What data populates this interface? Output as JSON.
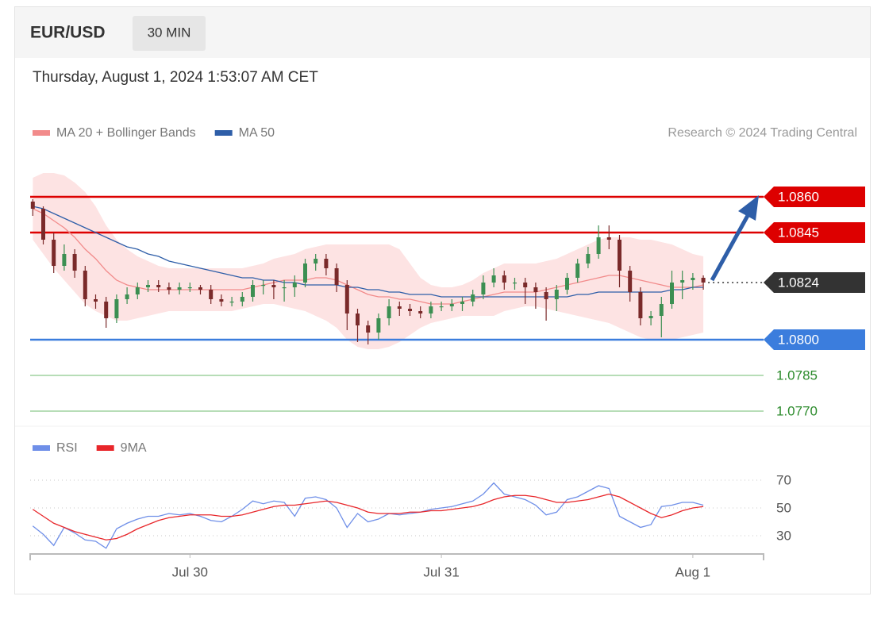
{
  "header": {
    "symbol": "EUR/USD",
    "interval": "30 MIN",
    "timestamp": "Thursday, August 1, 2024 1:53:07 AM CET",
    "credit": "Research © 2024 Trading Central"
  },
  "chart_data": [
    {
      "type": "candlestick",
      "x": [
        0.5,
        2.5,
        4.5,
        6.5,
        8.5,
        10.5,
        12.5,
        14.5,
        16.5,
        18.5,
        20.5,
        22.5,
        24.5,
        26.5,
        28.5,
        30.5,
        32.5,
        34.5,
        36.5,
        38.5,
        40.5,
        42.5,
        44.5,
        46.5,
        48.5,
        50.5,
        52.5,
        54.5,
        56.5,
        58.5,
        60.5,
        62.5,
        64.5,
        66.5,
        68.5,
        70.5,
        72.5,
        74.5,
        76.5,
        78.5,
        80.5,
        82.5,
        84.5,
        86.5,
        88.5,
        90.5,
        92.5,
        94.5,
        96.5,
        98.5,
        100.5,
        102.5,
        104.5,
        106.5,
        108.5,
        110.5,
        112.5,
        114.5,
        116.5,
        118.5,
        120.5,
        122.5,
        124.5,
        126.5,
        128.5
      ],
      "open": [
        1.0858,
        1.0855,
        1.0842,
        1.0831,
        1.0836,
        1.0829,
        1.0817,
        1.0816,
        1.0809,
        1.0817,
        1.0819,
        1.0822,
        1.0823,
        1.0822,
        1.0821,
        1.0822,
        1.0822,
        1.0821,
        1.0817,
        1.0816,
        1.0816,
        1.0818,
        1.0823,
        1.0823,
        1.0822,
        1.0822,
        1.0824,
        1.0832,
        1.0834,
        1.083,
        1.0823,
        1.0811,
        1.0806,
        1.0803,
        1.0809,
        1.0814,
        1.0813,
        1.0812,
        1.0811,
        1.0814,
        1.0814,
        1.0815,
        1.0816,
        1.0819,
        1.0824,
        1.0827,
        1.0824,
        1.0824,
        1.0822,
        1.082,
        1.0817,
        1.0821,
        1.0826,
        1.0832,
        1.0836,
        1.0843,
        1.0842,
        1.0829,
        1.082,
        1.0809,
        1.081,
        1.0815,
        1.0824,
        1.0825,
        1.0826
      ],
      "high": [
        1.0859,
        1.0856,
        1.0845,
        1.084,
        1.0838,
        1.0831,
        1.0819,
        1.0818,
        1.0819,
        1.0822,
        1.0824,
        1.0825,
        1.0825,
        1.0824,
        1.0824,
        1.0824,
        1.0823,
        1.0823,
        1.0819,
        1.0818,
        1.082,
        1.0825,
        1.0825,
        1.0825,
        1.0825,
        1.0827,
        1.0834,
        1.0836,
        1.0836,
        1.0832,
        1.0825,
        1.0813,
        1.0808,
        1.0811,
        1.0817,
        1.0816,
        1.0815,
        1.0814,
        1.0816,
        1.0816,
        1.0817,
        1.0818,
        1.0821,
        1.0827,
        1.083,
        1.0829,
        1.0826,
        1.0826,
        1.0824,
        1.0822,
        1.0823,
        1.0828,
        1.0834,
        1.0839,
        1.0848,
        1.0848,
        1.0844,
        1.0831,
        1.0822,
        1.0812,
        1.0818,
        1.0829,
        1.0829,
        1.0828,
        1.0827
      ],
      "low": [
        1.0852,
        1.084,
        1.0828,
        1.0829,
        1.0826,
        1.0814,
        1.0813,
        1.0805,
        1.0807,
        1.0815,
        1.0817,
        1.082,
        1.082,
        1.0819,
        1.0819,
        1.082,
        1.0819,
        1.0815,
        1.0814,
        1.0814,
        1.0814,
        1.0816,
        1.0819,
        1.0817,
        1.0816,
        1.0818,
        1.0822,
        1.0829,
        1.0827,
        1.082,
        1.0804,
        1.0799,
        1.0798,
        1.08,
        1.0806,
        1.081,
        1.081,
        1.0809,
        1.0809,
        1.0812,
        1.0812,
        1.0812,
        1.0814,
        1.0817,
        1.0822,
        1.0821,
        1.0821,
        1.0815,
        1.0813,
        1.0808,
        1.0812,
        1.0819,
        1.0824,
        1.083,
        1.0834,
        1.0838,
        1.0822,
        1.0816,
        1.0806,
        1.0806,
        1.0801,
        1.0813,
        1.0817,
        1.0821,
        1.0821
      ],
      "close": [
        1.0855,
        1.0842,
        1.0831,
        1.0836,
        1.0829,
        1.0817,
        1.0816,
        1.0809,
        1.0817,
        1.0819,
        1.0822,
        1.0823,
        1.0822,
        1.0821,
        1.0822,
        1.0822,
        1.0821,
        1.0817,
        1.0816,
        1.0816,
        1.0818,
        1.0823,
        1.0823,
        1.0822,
        1.0822,
        1.0824,
        1.0832,
        1.0834,
        1.083,
        1.0823,
        1.0811,
        1.0806,
        1.0803,
        1.0809,
        1.0814,
        1.0813,
        1.0812,
        1.0811,
        1.0814,
        1.0814,
        1.0815,
        1.0816,
        1.0819,
        1.0824,
        1.0827,
        1.0824,
        1.0824,
        1.0822,
        1.082,
        1.0817,
        1.0821,
        1.0826,
        1.0832,
        1.0836,
        1.0843,
        1.0842,
        1.0829,
        1.082,
        1.0809,
        1.081,
        1.0815,
        1.0824,
        1.0825,
        1.0826,
        1.0824
      ],
      "up_color": "#3c8f52",
      "down_color": "#7a2a2a",
      "series": [
        {
          "name": "MA 20 + Bollinger Bands",
          "color": "#f28b8b",
          "band_color": "#fde3e3",
          "values": [
            1.0855,
            1.0853,
            1.085,
            1.0847,
            1.0843,
            1.0838,
            1.0834,
            1.0829,
            1.0825,
            1.0823,
            1.0822,
            1.0821,
            1.0821,
            1.0821,
            1.0821,
            1.0821,
            1.0821,
            1.0821,
            1.0821,
            1.0821,
            1.0821,
            1.0822,
            1.0823,
            1.0824,
            1.0825,
            1.0825,
            1.0825,
            1.0826,
            1.0826,
            1.0825,
            1.0823,
            1.0821,
            1.0819,
            1.0818,
            1.0818,
            1.0817,
            1.0817,
            1.0816,
            1.0815,
            1.0815,
            1.0815,
            1.0816,
            1.0817,
            1.0818,
            1.0819,
            1.082,
            1.082,
            1.082,
            1.082,
            1.0821,
            1.0822,
            1.0823,
            1.0824,
            1.0825,
            1.0826,
            1.0827,
            1.0827,
            1.0826,
            1.0825,
            1.0824,
            1.0823,
            1.0822,
            1.0822,
            1.0822,
            1.0823
          ],
          "upper": [
            1.0868,
            1.087,
            1.087,
            1.0869,
            1.0866,
            1.0862,
            1.0856,
            1.0848,
            1.0842,
            1.0838,
            1.0835,
            1.0833,
            1.0831,
            1.083,
            1.083,
            1.083,
            1.083,
            1.083,
            1.083,
            1.083,
            1.083,
            1.0831,
            1.0832,
            1.0834,
            1.0835,
            1.0836,
            1.0838,
            1.0839,
            1.084,
            1.084,
            1.084,
            1.084,
            1.084,
            1.084,
            1.084,
            1.0838,
            1.0832,
            1.0826,
            1.0823,
            1.0822,
            1.0822,
            1.0823,
            1.0825,
            1.0828,
            1.083,
            1.0832,
            1.0832,
            1.0832,
            1.0832,
            1.0833,
            1.0834,
            1.0836,
            1.0838,
            1.084,
            1.0842,
            1.0843,
            1.0843,
            1.0843,
            1.0842,
            1.0842,
            1.0841,
            1.084,
            1.0838,
            1.0836,
            1.0835
          ],
          "lower": [
            1.0842,
            1.0836,
            1.083,
            1.0825,
            1.082,
            1.0815,
            1.0812,
            1.081,
            1.0808,
            1.0808,
            1.0809,
            1.081,
            1.0811,
            1.0812,
            1.0812,
            1.0812,
            1.0812,
            1.0812,
            1.0812,
            1.0812,
            1.0813,
            1.0814,
            1.0815,
            1.0815,
            1.0814,
            1.0813,
            1.0812,
            1.081,
            1.0808,
            1.0805,
            1.08,
            1.0797,
            1.0796,
            1.0796,
            1.0797,
            1.0799,
            1.0802,
            1.0805,
            1.0807,
            1.0808,
            1.0809,
            1.081,
            1.081,
            1.081,
            1.081,
            1.0812,
            1.0813,
            1.0814,
            1.0814,
            1.0813,
            1.0812,
            1.0811,
            1.081,
            1.0809,
            1.0808,
            1.0807,
            1.0805,
            1.0803,
            1.0801,
            1.08,
            1.08,
            1.08,
            1.0801,
            1.0802,
            1.0803
          ]
        },
        {
          "name": "MA 50",
          "color": "#2e5ea8",
          "values": [
            1.0856,
            1.0855,
            1.0853,
            1.0851,
            1.0849,
            1.0847,
            1.0845,
            1.0843,
            1.0841,
            1.0839,
            1.0838,
            1.0836,
            1.0835,
            1.0833,
            1.0832,
            1.0831,
            1.083,
            1.0829,
            1.0828,
            1.0827,
            1.0826,
            1.0826,
            1.0825,
            1.0825,
            1.0824,
            1.0824,
            1.0823,
            1.0823,
            1.0823,
            1.0823,
            1.0822,
            1.0822,
            1.0821,
            1.0821,
            1.082,
            1.082,
            1.0819,
            1.0819,
            1.0819,
            1.0818,
            1.0818,
            1.0818,
            1.0818,
            1.0818,
            1.0818,
            1.0818,
            1.0818,
            1.0818,
            1.0818,
            1.0818,
            1.0818,
            1.0818,
            1.0819,
            1.0819,
            1.082,
            1.082,
            1.082,
            1.082,
            1.082,
            1.082,
            1.082,
            1.0821,
            1.0821,
            1.0822,
            1.0822
          ]
        }
      ],
      "levels": [
        {
          "value": 1.086,
          "label": "1.0860",
          "color": "#dd0000",
          "line": "solid",
          "tag": true
        },
        {
          "value": 1.0845,
          "label": "1.0845",
          "color": "#dd0000",
          "line": "solid",
          "tag": true
        },
        {
          "value": 1.0824,
          "label": "1.0824",
          "color": "#333333",
          "line": "dotted",
          "tag": true
        },
        {
          "value": 1.08,
          "label": "1.0800",
          "color": "#3b7ddd",
          "line": "solid",
          "tag": true
        },
        {
          "value": 1.0785,
          "label": "1.0785",
          "color": "#2a8a2a",
          "line": "solid",
          "tag": false
        },
        {
          "value": 1.077,
          "label": "1.0770",
          "color": "#2a8a2a",
          "line": "solid",
          "tag": false
        }
      ],
      "xlim": [
        0,
        140
      ],
      "ylim": [
        1.0766,
        1.0881
      ]
    },
    {
      "type": "line",
      "x": [
        0.5,
        2.5,
        4.5,
        6.5,
        8.5,
        10.5,
        12.5,
        14.5,
        16.5,
        18.5,
        20.5,
        22.5,
        24.5,
        26.5,
        28.5,
        30.5,
        32.5,
        34.5,
        36.5,
        38.5,
        40.5,
        42.5,
        44.5,
        46.5,
        48.5,
        50.5,
        52.5,
        54.5,
        56.5,
        58.5,
        60.5,
        62.5,
        64.5,
        66.5,
        68.5,
        70.5,
        72.5,
        74.5,
        76.5,
        78.5,
        80.5,
        82.5,
        84.5,
        86.5,
        88.5,
        90.5,
        92.5,
        94.5,
        96.5,
        98.5,
        100.5,
        102.5,
        104.5,
        106.5,
        108.5,
        110.5,
        112.5,
        114.5,
        116.5,
        118.5,
        120.5,
        122.5,
        124.5,
        126.5,
        128.5
      ],
      "series": [
        {
          "name": "RSI",
          "color": "#6f8fe8",
          "values": [
            37,
            31,
            23,
            36,
            32,
            27,
            26,
            21,
            35,
            39,
            42,
            44,
            44,
            46,
            45,
            46,
            44,
            41,
            40,
            44,
            49,
            55,
            53,
            55,
            54,
            44,
            57,
            58,
            56,
            50,
            36,
            46,
            40,
            42,
            46,
            45,
            46,
            47,
            49,
            50,
            51,
            53,
            55,
            60,
            68,
            60,
            58,
            56,
            52,
            45,
            47,
            56,
            58,
            62,
            66,
            64,
            44,
            40,
            36,
            38,
            51,
            52,
            54,
            54,
            52
          ]
        },
        {
          "name": "9MA",
          "color": "#e8262a",
          "values": [
            49,
            44,
            39,
            36,
            33,
            31,
            29,
            27,
            28,
            31,
            35,
            38,
            41,
            43,
            44,
            45,
            45,
            45,
            44,
            44,
            45,
            47,
            49,
            51,
            52,
            52,
            53,
            54,
            55,
            54,
            52,
            50,
            47,
            46,
            46,
            46,
            47,
            47,
            48,
            48,
            49,
            50,
            51,
            53,
            56,
            58,
            59,
            59,
            58,
            56,
            54,
            54,
            55,
            56,
            58,
            60,
            58,
            54,
            50,
            46,
            43,
            45,
            48,
            50,
            51
          ]
        }
      ],
      "xlim": [
        0,
        140
      ],
      "ylim": [
        20,
        80
      ],
      "yticks": [
        30,
        50,
        70
      ],
      "xticks": [
        {
          "value": 30.5,
          "label": "Jul 30"
        },
        {
          "value": 78.5,
          "label": "Jul 31"
        },
        {
          "value": 126.5,
          "label": "Aug 1"
        }
      ]
    }
  ]
}
